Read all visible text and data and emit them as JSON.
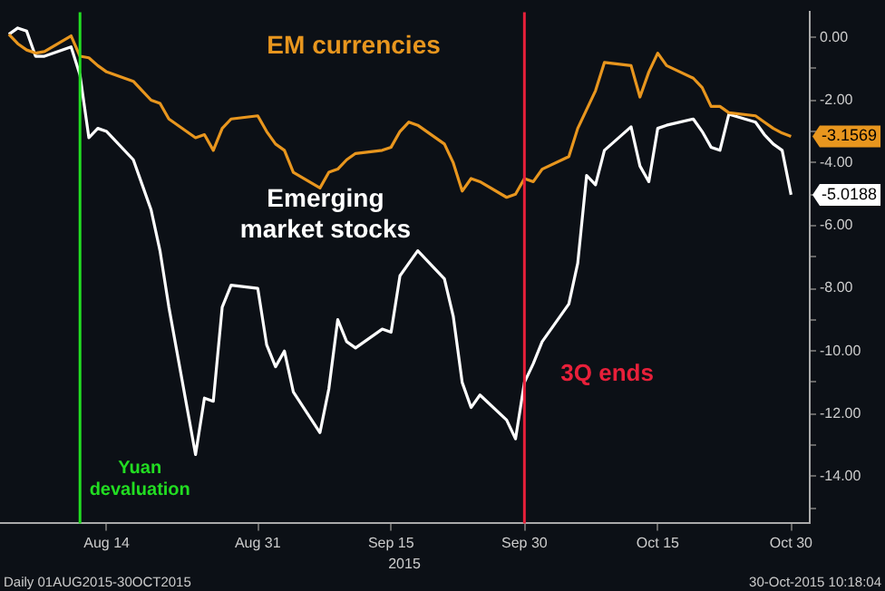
{
  "chart_data": {
    "type": "line",
    "x": [
      "2015-08-03",
      "2015-08-04",
      "2015-08-05",
      "2015-08-06",
      "2015-08-07",
      "2015-08-10",
      "2015-08-11",
      "2015-08-12",
      "2015-08-13",
      "2015-08-14",
      "2015-08-17",
      "2015-08-18",
      "2015-08-19",
      "2015-08-20",
      "2015-08-21",
      "2015-08-24",
      "2015-08-25",
      "2015-08-26",
      "2015-08-27",
      "2015-08-28",
      "2015-08-31",
      "2015-09-01",
      "2015-09-02",
      "2015-09-03",
      "2015-09-04",
      "2015-09-07",
      "2015-09-08",
      "2015-09-09",
      "2015-09-10",
      "2015-09-11",
      "2015-09-14",
      "2015-09-15",
      "2015-09-16",
      "2015-09-17",
      "2015-09-18",
      "2015-09-21",
      "2015-09-22",
      "2015-09-23",
      "2015-09-24",
      "2015-09-25",
      "2015-09-28",
      "2015-09-29",
      "2015-09-30",
      "2015-10-01",
      "2015-10-02",
      "2015-10-05",
      "2015-10-06",
      "2015-10-07",
      "2015-10-08",
      "2015-10-09",
      "2015-10-12",
      "2015-10-13",
      "2015-10-14",
      "2015-10-15",
      "2015-10-16",
      "2015-10-19",
      "2015-10-20",
      "2015-10-21",
      "2015-10-22",
      "2015-10-23",
      "2015-10-26",
      "2015-10-27",
      "2015-10-28",
      "2015-10-29",
      "2015-10-30"
    ],
    "series": [
      {
        "name": "EM currencies",
        "color": "#e8961e",
        "values": [
          0.1,
          -0.2,
          -0.4,
          -0.5,
          -0.45,
          0.05,
          -0.6,
          -0.65,
          -0.9,
          -1.1,
          -1.4,
          -1.7,
          -2.0,
          -2.1,
          -2.6,
          -3.2,
          -3.1,
          -3.6,
          -2.9,
          -2.6,
          -2.5,
          -3.0,
          -3.4,
          -3.6,
          -4.3,
          -4.8,
          -4.3,
          -4.2,
          -3.9,
          -3.7,
          -3.6,
          -3.5,
          -3.0,
          -2.7,
          -2.8,
          -3.4,
          -4.0,
          -4.9,
          -4.5,
          -4.6,
          -5.1,
          -5.0,
          -4.5,
          -4.6,
          -4.2,
          -3.8,
          -2.9,
          -2.3,
          -1.7,
          -0.8,
          -0.9,
          -1.9,
          -1.1,
          -0.5,
          -0.9,
          -1.3,
          -1.6,
          -2.2,
          -2.2,
          -2.4,
          -2.5,
          -2.7,
          -2.9,
          -3.05,
          -3.1569
        ]
      },
      {
        "name": "Emerging market stocks",
        "color": "#ffffff",
        "values": [
          0.1,
          0.3,
          0.2,
          -0.6,
          -0.6,
          -0.3,
          -1.2,
          -3.2,
          -2.9,
          -3.0,
          -3.9,
          -4.7,
          -5.5,
          -6.8,
          -8.6,
          -13.3,
          -11.5,
          -11.6,
          -8.6,
          -7.9,
          -8.0,
          -9.8,
          -10.5,
          -10.0,
          -11.3,
          -12.6,
          -11.2,
          -9.0,
          -9.7,
          -9.9,
          -9.3,
          -9.4,
          -7.6,
          -7.2,
          -6.8,
          -7.7,
          -8.9,
          -11.0,
          -11.8,
          -11.4,
          -12.2,
          -12.8,
          -11.0,
          -10.4,
          -9.7,
          -8.5,
          -7.2,
          -4.4,
          -4.7,
          -3.6,
          -2.85,
          -4.1,
          -4.6,
          -2.9,
          -2.8,
          -2.6,
          -3.0,
          -3.5,
          -3.6,
          -2.45,
          -2.7,
          -3.1,
          -3.4,
          -3.6,
          -5.0188
        ]
      }
    ],
    "xlabel": "2015",
    "xlim": [
      "2015-08-02",
      "2015-11-01"
    ],
    "xticks": [
      {
        "value": "2015-08-14",
        "label": "Aug 14"
      },
      {
        "value": "2015-08-31",
        "label": "Aug 31"
      },
      {
        "value": "2015-09-15",
        "label": "Sep 15"
      },
      {
        "value": "2015-09-30",
        "label": "Sep 30"
      },
      {
        "value": "2015-10-15",
        "label": "Oct 15"
      },
      {
        "value": "2015-10-30",
        "label": "Oct 30"
      }
    ],
    "ylim": [
      -15.5,
      0.8
    ],
    "yticks": [
      {
        "value": 0,
        "label": "0.00"
      },
      {
        "value": -1,
        "label": null
      },
      {
        "value": -2,
        "label": "-2.00"
      },
      {
        "value": -3,
        "label": null
      },
      {
        "value": -4,
        "label": "-4.00"
      },
      {
        "value": -5,
        "label": null
      },
      {
        "value": -6,
        "label": "-6.00"
      },
      {
        "value": -7,
        "label": null
      },
      {
        "value": -8,
        "label": "-8.00"
      },
      {
        "value": -9,
        "label": null
      },
      {
        "value": -10,
        "label": "-10.00"
      },
      {
        "value": -11,
        "label": null
      },
      {
        "value": -12,
        "label": "-12.00"
      },
      {
        "value": -13,
        "label": null
      },
      {
        "value": -14,
        "label": "-14.00"
      },
      {
        "value": -15,
        "label": null
      }
    ],
    "ref_lines": [
      {
        "axis": "x",
        "value": "2015-08-11",
        "label": "Yuan devaluation",
        "color": "#22dd22"
      },
      {
        "axis": "x",
        "value": "2015-09-30",
        "label": "3Q ends",
        "color": "#e8203a"
      }
    ],
    "annotations": [
      {
        "text": "-3.1569",
        "x": "2015-10-30",
        "y": -3.1569
      },
      {
        "text": "-5.0188",
        "x": "2015-10-30",
        "y": -5.0188
      },
      "Daily 01AUG2015-30OCT2015",
      "30-Oct-2015 10:18:04"
    ],
    "legend": false,
    "marker": "none",
    "line_style": "solid"
  }
}
